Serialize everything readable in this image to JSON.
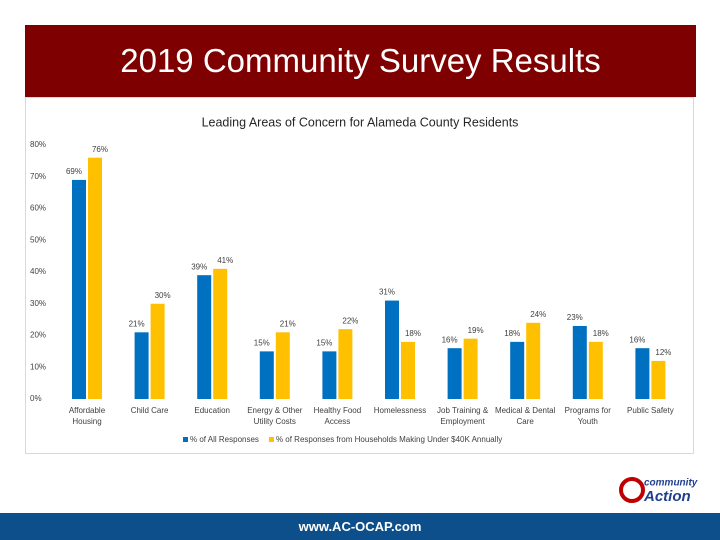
{
  "header": {
    "title": "2019 Community Survey Results"
  },
  "chart_data": {
    "type": "bar",
    "title": "Leading Areas of Concern for Alameda County Residents",
    "categories": [
      "Affordable Housing",
      "Child Care",
      "Education",
      "Energy & Other Utility Costs",
      "Healthy Food Access",
      "Homelessness",
      "Job Training & Employment",
      "Medical & Dental Care",
      "Programs for Youth",
      "Public Safety"
    ],
    "series": [
      {
        "name": "% of All Responses",
        "color": "#0070c0",
        "values": [
          69,
          21,
          39,
          15,
          15,
          31,
          16,
          18,
          23,
          16
        ],
        "value_labels": [
          "69%",
          "21%",
          "39%",
          "15%",
          "15%",
          "31%",
          "16%",
          "18%",
          "23%",
          "16%"
        ]
      },
      {
        "name": "% of Responses from Households Making Under $40K Annually",
        "color": "#ffc000",
        "values": [
          76,
          30,
          41,
          21,
          22,
          18,
          19,
          24,
          18,
          12
        ],
        "value_labels": [
          "76%",
          "30%",
          "41%",
          "21%",
          "22%",
          "18%",
          "19%",
          "24%",
          "18%",
          "12%"
        ]
      }
    ],
    "ylim": [
      0,
      80
    ],
    "yticks": [
      {
        "value": 0,
        "label": "0%"
      },
      {
        "value": 10,
        "label": "10%"
      },
      {
        "value": 20,
        "label": "20%"
      },
      {
        "value": 30,
        "label": "30%"
      },
      {
        "value": 40,
        "label": "40%"
      },
      {
        "value": 50,
        "label": "50%"
      },
      {
        "value": 60,
        "label": "60%"
      },
      {
        "value": 70,
        "label": "70%"
      },
      {
        "value": 80,
        "label": "80%"
      }
    ],
    "grid": false,
    "legend": "bottom"
  },
  "logo": {
    "line1": "community",
    "line2": "Action"
  },
  "footer": {
    "url": "www.AC-OCAP.com"
  }
}
